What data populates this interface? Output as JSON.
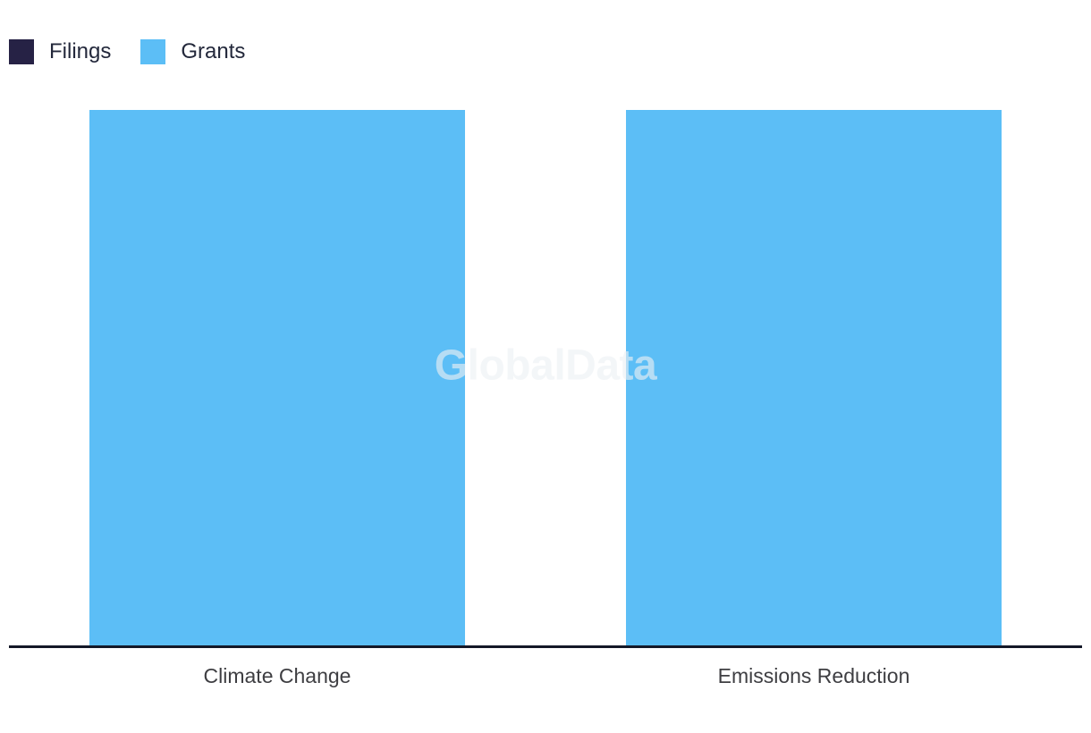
{
  "chart_data": {
    "type": "bar",
    "subtype": "stacked-vertical",
    "title": "",
    "xlabel": "",
    "ylabel": "",
    "categories": [
      "Climate Change",
      "Emissions Reduction"
    ],
    "series": [
      {
        "name": "Filings",
        "color": "#262245",
        "values": [
          0,
          0
        ]
      },
      {
        "name": "Grants",
        "color": "#5CBEF6",
        "values": [
          1,
          1
        ]
      }
    ],
    "ylim": [
      0,
      1
    ],
    "y_axis_visible": false,
    "grid": false,
    "legend_position": "top-left"
  },
  "axis": {
    "color": "#141828"
  },
  "watermark": {
    "text": "GlobalData",
    "color": "#EDF1F4"
  }
}
